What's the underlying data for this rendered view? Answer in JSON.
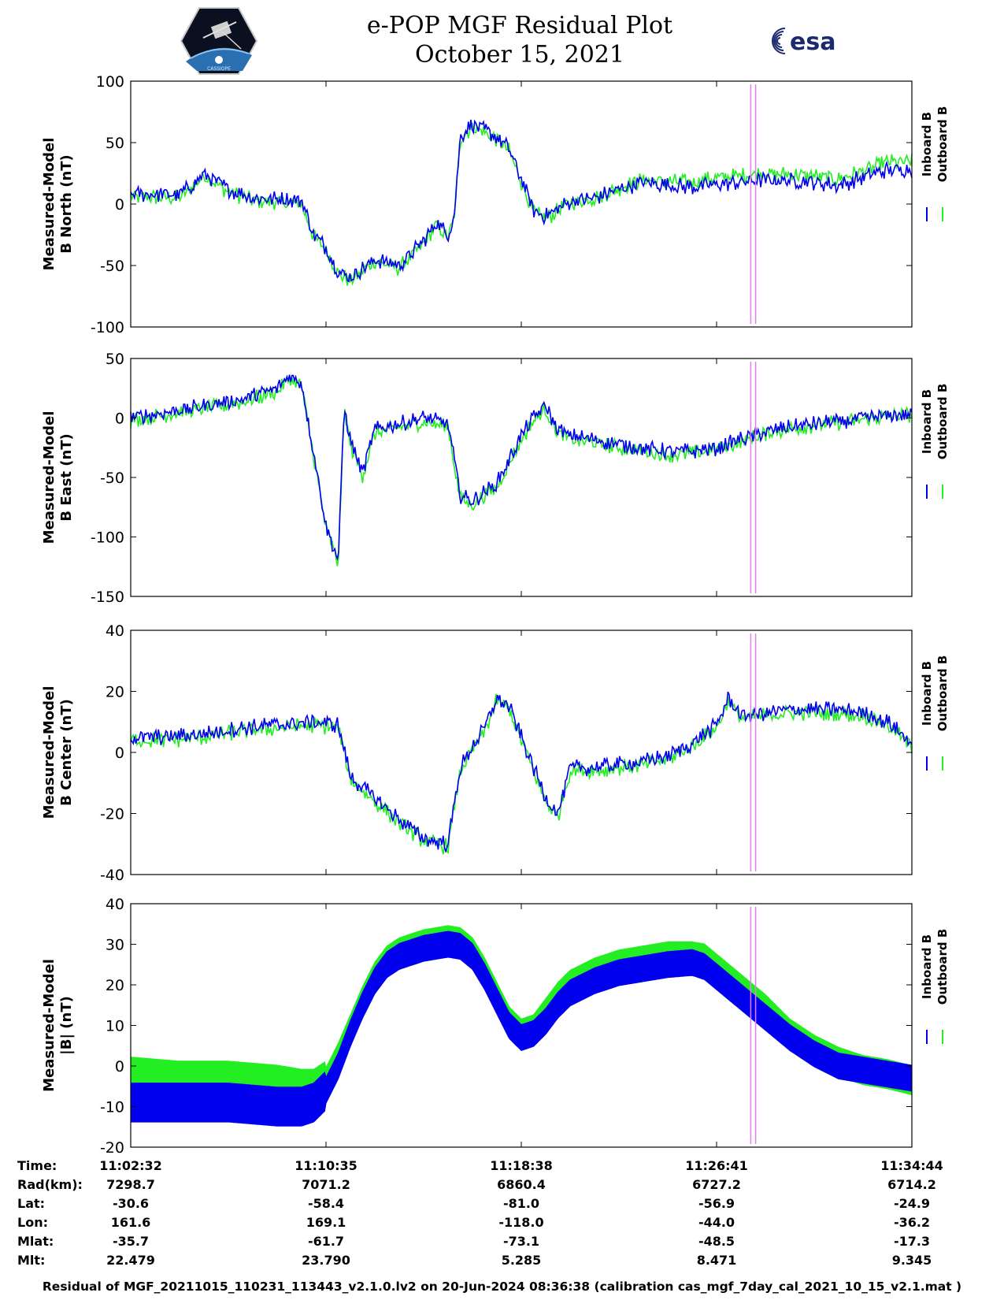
{
  "header": {
    "title": "e-POP MGF Residual Plot",
    "date": "October 15, 2021",
    "left_logo_text": "CASSIOPE",
    "right_logo_text": "esa"
  },
  "colors": {
    "inboard": "#0000ee",
    "outboard": "#22ee22",
    "marker": "#e080f0",
    "axis": "#000000"
  },
  "legend": {
    "inboard": "Inboard B",
    "outboard": "Outboard B"
  },
  "chart_data": [
    {
      "type": "line",
      "id": "north",
      "ylabel": [
        "Measured-Model",
        "B North (nT)"
      ],
      "ylim": [
        -100,
        100
      ],
      "yticks": [
        100,
        50,
        0,
        -50,
        -100
      ],
      "xlim": [
        0,
        64
      ],
      "xticks": [
        0,
        16,
        32,
        48,
        64
      ],
      "series": [
        {
          "name": "Inboard B",
          "x": [
            0,
            4,
            5,
            6,
            8,
            10,
            12,
            14,
            15,
            16,
            17,
            18,
            20,
            22,
            24,
            25,
            26,
            26.5,
            27,
            28,
            29,
            30,
            31,
            32,
            33,
            34,
            36,
            38,
            40,
            42,
            44,
            46,
            48,
            50,
            52,
            54,
            56,
            58,
            60,
            62,
            64
          ],
          "values": [
            8,
            8,
            15,
            25,
            12,
            5,
            4,
            3,
            -25,
            -35,
            -55,
            -60,
            -45,
            -50,
            -30,
            -15,
            -25,
            -10,
            55,
            65,
            60,
            55,
            45,
            20,
            -5,
            -10,
            2,
            5,
            12,
            18,
            15,
            14,
            16,
            18,
            20,
            19,
            18,
            15,
            22,
            28,
            28
          ]
        },
        {
          "name": "Outboard B",
          "x": [
            0,
            4,
            5,
            6,
            8,
            10,
            12,
            14,
            15,
            16,
            17,
            18,
            20,
            22,
            24,
            25,
            26,
            26.5,
            27,
            28,
            29,
            30,
            31,
            32,
            33,
            34,
            36,
            38,
            40,
            42,
            44,
            46,
            48,
            50,
            52,
            54,
            56,
            58,
            60,
            62,
            64
          ],
          "values": [
            6,
            5,
            13,
            23,
            10,
            3,
            2,
            0,
            -27,
            -37,
            -57,
            -62,
            -47,
            -52,
            -32,
            -17,
            -27,
            -12,
            53,
            63,
            58,
            53,
            43,
            18,
            -7,
            -12,
            1,
            5,
            13,
            20,
            18,
            18,
            21,
            23,
            25,
            24,
            23,
            20,
            27,
            34,
            34
          ]
        }
      ]
    },
    {
      "type": "line",
      "id": "east",
      "ylabel": [
        "Measured-Model",
        "B East (nT)"
      ],
      "ylim": [
        -150,
        50
      ],
      "yticks": [
        50,
        0,
        -50,
        -100,
        -150
      ],
      "xlim": [
        0,
        64
      ],
      "xticks": [
        0,
        16,
        32,
        48,
        64
      ],
      "series": [
        {
          "name": "Inboard B",
          "x": [
            0,
            3,
            6,
            9,
            12,
            13,
            14,
            15,
            15.5,
            16,
            17,
            17.5,
            18,
            19,
            20,
            22,
            24,
            26,
            27,
            28,
            30,
            32,
            33,
            34,
            35,
            36,
            38,
            40,
            42,
            44,
            46,
            48,
            50,
            52,
            54,
            56,
            58,
            60,
            62,
            64
          ],
          "values": [
            0,
            5,
            10,
            15,
            25,
            35,
            30,
            -30,
            -60,
            -90,
            -120,
            10,
            -20,
            -45,
            -10,
            -5,
            0,
            -5,
            -65,
            -70,
            -55,
            -15,
            0,
            10,
            -10,
            -15,
            -18,
            -22,
            -25,
            -28,
            -28,
            -25,
            -18,
            -12,
            -8,
            -5,
            -3,
            0,
            2,
            4
          ]
        },
        {
          "name": "Outboard B",
          "x": [
            0,
            3,
            6,
            9,
            12,
            13,
            14,
            15,
            15.5,
            16,
            17,
            17.5,
            18,
            19,
            20,
            22,
            24,
            26,
            27,
            28,
            30,
            32,
            33,
            34,
            35,
            36,
            38,
            40,
            42,
            44,
            46,
            48,
            50,
            52,
            54,
            56,
            58,
            60,
            62,
            64
          ],
          "values": [
            -2,
            3,
            8,
            13,
            22,
            32,
            27,
            -33,
            -63,
            -93,
            -123,
            7,
            -23,
            -48,
            -13,
            -8,
            -3,
            -8,
            -68,
            -73,
            -58,
            -18,
            -3,
            7,
            -13,
            -18,
            -21,
            -25,
            -28,
            -31,
            -30,
            -27,
            -20,
            -13,
            -9,
            -6,
            -4,
            -1,
            1,
            3
          ]
        }
      ]
    },
    {
      "type": "line",
      "id": "center",
      "ylabel": [
        "Measured-Model",
        "B Center (nT)"
      ],
      "ylim": [
        -40,
        40
      ],
      "yticks": [
        40,
        20,
        0,
        -20,
        -40
      ],
      "xlim": [
        0,
        64
      ],
      "xticks": [
        0,
        16,
        32,
        48,
        64
      ],
      "series": [
        {
          "name": "Inboard B",
          "x": [
            0,
            3,
            6,
            9,
            12,
            15,
            17,
            18,
            20,
            22,
            24,
            26,
            27,
            28,
            29,
            30,
            31,
            32,
            34,
            35,
            36,
            38,
            40,
            42,
            44,
            46,
            48,
            49,
            50,
            52,
            54,
            56,
            58,
            60,
            62,
            64
          ],
          "values": [
            5,
            5,
            6,
            8,
            9,
            10,
            9,
            -8,
            -15,
            -22,
            -28,
            -30,
            -5,
            2,
            8,
            18,
            15,
            5,
            -15,
            -20,
            -5,
            -5,
            -4,
            -3,
            -1,
            3,
            9,
            18,
            12,
            13,
            14,
            14,
            14,
            13,
            10,
            3
          ]
        },
        {
          "name": "Outboard B",
          "x": [
            0,
            3,
            6,
            9,
            12,
            15,
            17,
            18,
            20,
            22,
            24,
            26,
            27,
            28,
            29,
            30,
            31,
            32,
            34,
            35,
            36,
            38,
            40,
            42,
            44,
            46,
            48,
            49,
            50,
            52,
            54,
            56,
            58,
            60,
            62,
            64
          ],
          "values": [
            4,
            4,
            5,
            7,
            8,
            9,
            8,
            -9,
            -16,
            -23,
            -29,
            -31,
            -6,
            1,
            7,
            17,
            14,
            4,
            -16,
            -21,
            -6,
            -6,
            -5,
            -4,
            -2,
            2,
            8,
            17,
            11,
            12,
            13,
            13,
            13,
            12,
            9,
            2
          ]
        }
      ]
    },
    {
      "type": "area",
      "id": "magnitude",
      "ylabel": [
        "Measured-Model",
        "|B| (nT)"
      ],
      "ylim": [
        -20,
        40
      ],
      "yticks": [
        40,
        30,
        20,
        10,
        0,
        -10,
        -20
      ],
      "xlim": [
        0,
        64
      ],
      "xticks": [
        0,
        16,
        32,
        48,
        64
      ],
      "series": [
        {
          "name": "Inboard B",
          "x": [
            0,
            4,
            8,
            12,
            14,
            15,
            16,
            17,
            18,
            19,
            20,
            21,
            22,
            24,
            26,
            27,
            28,
            29,
            30,
            31,
            32,
            33,
            34,
            35,
            36,
            38,
            40,
            42,
            44,
            46,
            47,
            48,
            50,
            52,
            54,
            56,
            58,
            60,
            62,
            64
          ],
          "values": [
            -9,
            -9,
            -9,
            -10,
            -10,
            -9,
            -6,
            0,
            8,
            15,
            21,
            25,
            27,
            29,
            30,
            29.5,
            27,
            22,
            16,
            10,
            7,
            8,
            11,
            15,
            18,
            21,
            23,
            24,
            25,
            25.5,
            24.5,
            22,
            17,
            12,
            7,
            3,
            0,
            -1,
            -2,
            -3
          ]
        },
        {
          "name": "Outboard B",
          "x": [
            0,
            4,
            8,
            12,
            14,
            15,
            16,
            17,
            18,
            19,
            20,
            21,
            22,
            24,
            26,
            27,
            28,
            29,
            30,
            31,
            32,
            33,
            34,
            35,
            36,
            38,
            40,
            42,
            44,
            46,
            47,
            48,
            50,
            52,
            54,
            56,
            58,
            60,
            62,
            64
          ],
          "values": [
            -3,
            -4,
            -4,
            -5,
            -6,
            -6,
            -4,
            2,
            9,
            16,
            22,
            26,
            28,
            30,
            31,
            30.5,
            28,
            23,
            17,
            11,
            8,
            9,
            13,
            17,
            20,
            23,
            25,
            26,
            27,
            27,
            26.5,
            24,
            19,
            14,
            8,
            4,
            1,
            -1,
            -2,
            -3.5
          ]
        }
      ]
    }
  ],
  "marker_x": [
    50.8,
    51.2
  ],
  "info_table": {
    "row_labels": [
      "Time:",
      "Rad(km):",
      "Lat:",
      "Lon:",
      "Mlat:",
      "Mlt:"
    ],
    "columns": [
      [
        "11:02:32",
        "7298.7",
        "-30.6",
        "161.6",
        "-35.7",
        "22.479"
      ],
      [
        "11:10:35",
        "7071.2",
        "-58.4",
        "169.1",
        "-61.7",
        "23.790"
      ],
      [
        "11:18:38",
        "6860.4",
        "-81.0",
        "-118.0",
        "-73.1",
        "5.285"
      ],
      [
        "11:26:41",
        "6727.2",
        "-56.9",
        "-44.0",
        "-48.5",
        "8.471"
      ],
      [
        "11:34:44",
        "6714.2",
        "-24.9",
        "-36.2",
        "-17.3",
        "9.345"
      ]
    ]
  },
  "footer": "Residual of MGF_20211015_110231_113443_v2.1.0.lv2 on 20-Jun-2024 08:36:38 (calibration cas_mgf_7day_cal_2021_10_15_v2.1.mat )"
}
